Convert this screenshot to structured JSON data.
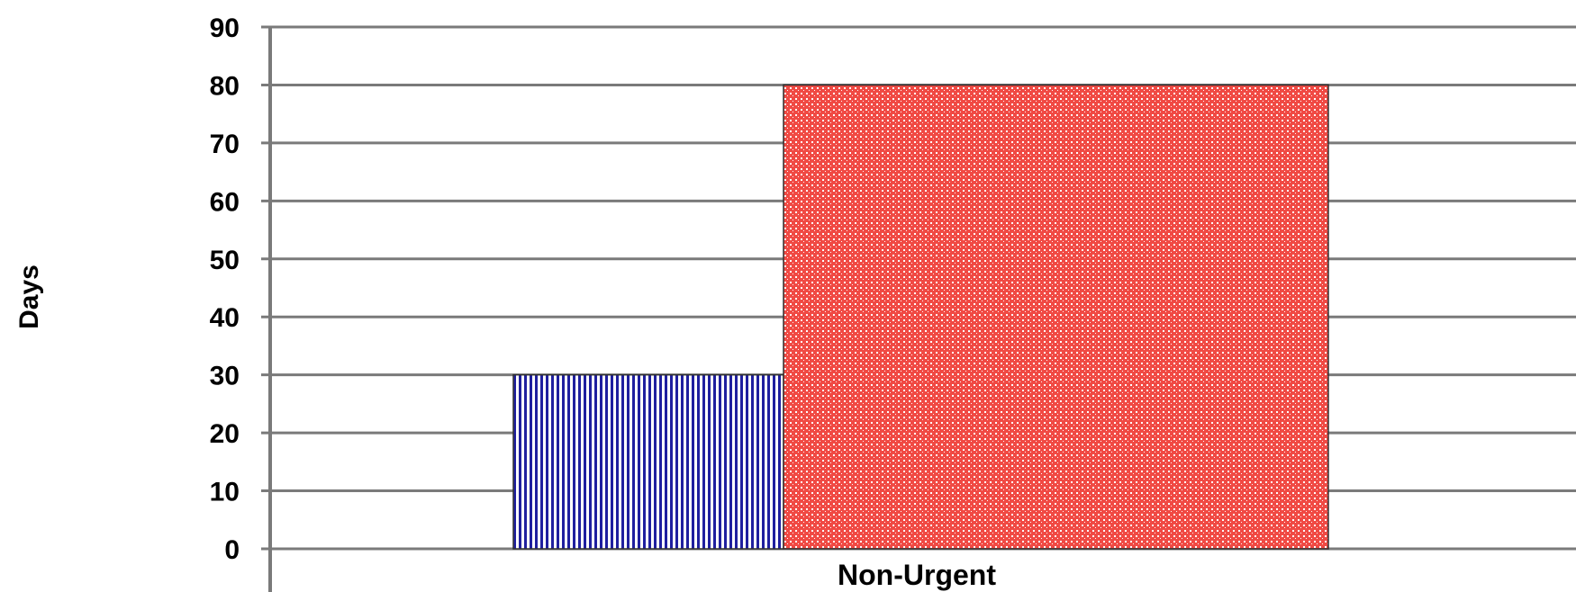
{
  "chart_data": {
    "type": "bar",
    "categories": [
      "Non-Urgent"
    ],
    "series": [
      {
        "values": [
          30
        ],
        "color": "#1f1f9f",
        "pattern": "vertical-stripes"
      },
      {
        "values": [
          80
        ],
        "color": "#e8302a",
        "pattern": "dots"
      }
    ],
    "title": "",
    "xlabel": "",
    "ylabel": "Days",
    "ylim": [
      0,
      90
    ],
    "yticks": [
      0,
      10,
      20,
      30,
      40,
      50,
      60,
      70,
      80,
      90
    ],
    "grid": true,
    "legend": "none"
  }
}
